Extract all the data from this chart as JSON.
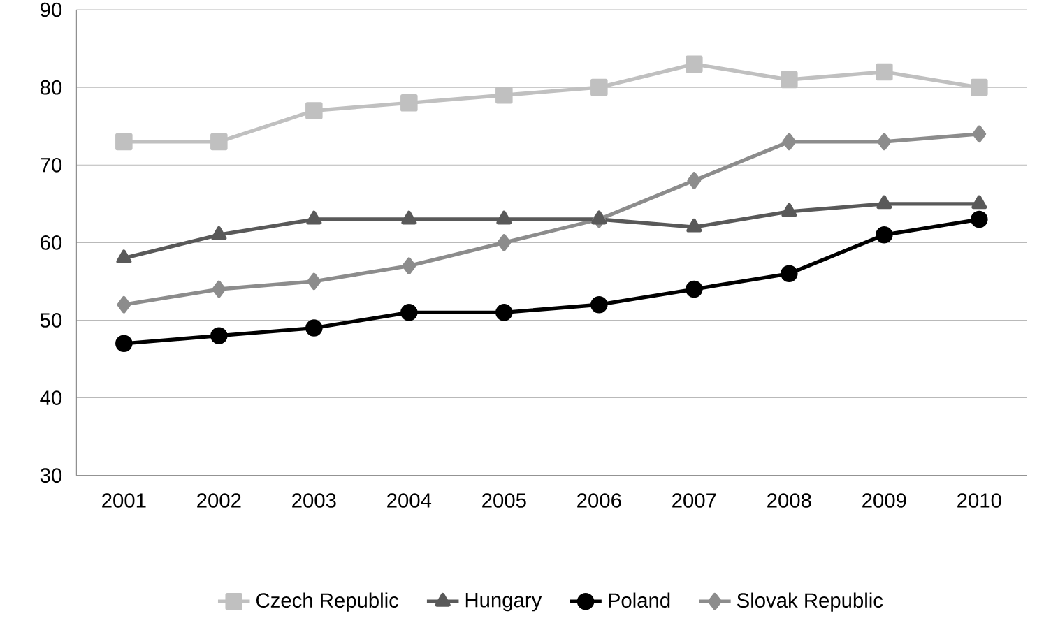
{
  "chart_data": {
    "type": "line",
    "categories": [
      "2001",
      "2002",
      "2003",
      "2004",
      "2005",
      "2006",
      "2007",
      "2008",
      "2009",
      "2010"
    ],
    "series": [
      {
        "name": "Czech Republic",
        "color": "#c0c0c0",
        "marker": "square",
        "values": [
          73,
          73,
          77,
          78,
          79,
          80,
          83,
          81,
          82,
          80
        ]
      },
      {
        "name": "Hungary",
        "color": "#595959",
        "marker": "triangle",
        "values": [
          58,
          61,
          63,
          63,
          63,
          63,
          62,
          64,
          65,
          65
        ]
      },
      {
        "name": "Poland",
        "color": "#000000",
        "marker": "circle",
        "values": [
          47,
          48,
          49,
          51,
          51,
          52,
          54,
          56,
          61,
          63
        ]
      },
      {
        "name": "Slovak Republic",
        "color": "#8c8c8c",
        "marker": "diamond",
        "values": [
          52,
          54,
          55,
          57,
          60,
          63,
          68,
          73,
          73,
          74
        ]
      }
    ],
    "ylim": [
      30,
      90
    ],
    "yticks": [
      30,
      40,
      50,
      60,
      70,
      80,
      90
    ],
    "grid": "y",
    "legend": "bottom",
    "line_style": "solid"
  }
}
